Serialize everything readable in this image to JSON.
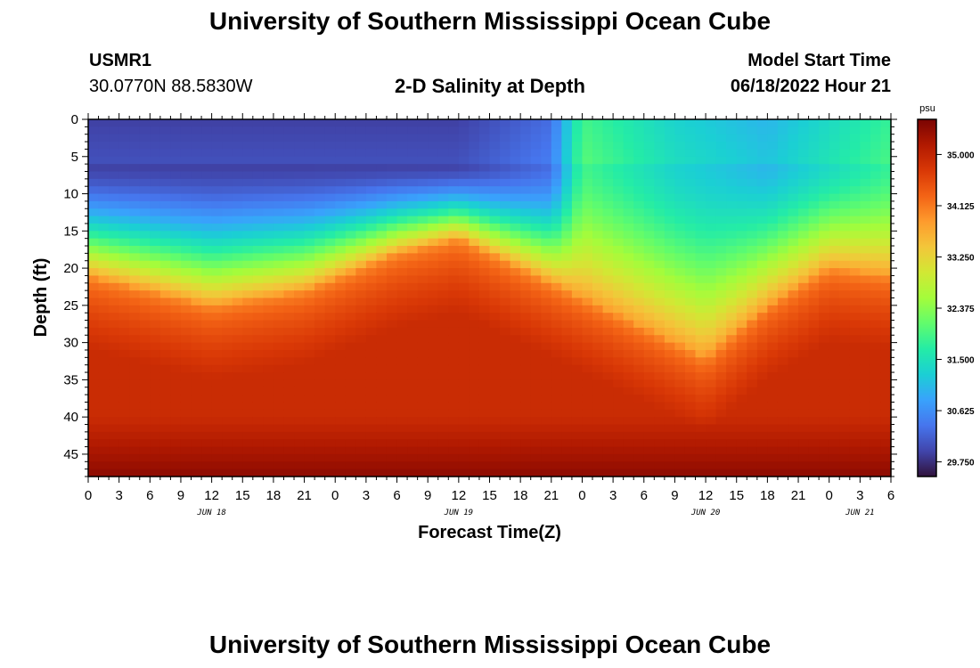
{
  "page": {
    "title_top": "University of Southern Mississippi Ocean Cube",
    "title_bottom": "University of Southern Mississippi Ocean Cube",
    "station_id": "USMR1",
    "station_coords": "30.0770N  88.5830W",
    "plot_title": "2-D Salinity at Depth",
    "model_start_label": "Model Start Time",
    "model_start_value": "06/18/2022 Hour 21"
  },
  "chart_data": {
    "type": "heatmap",
    "title": "2-D Salinity at Depth",
    "xlabel": "Forecast Time(Z)",
    "ylabel": "Depth (ft)",
    "x_tick_labels": [
      "0",
      "3",
      "6",
      "9",
      "12",
      "15",
      "18",
      "21",
      "0",
      "3",
      "6",
      "9",
      "12",
      "15",
      "18",
      "21",
      "0",
      "3",
      "6",
      "9",
      "12",
      "15",
      "18",
      "21",
      "0",
      "3",
      "6"
    ],
    "x_range_hours": [
      0,
      78
    ],
    "date_labels": [
      {
        "text": "JUN 18",
        "hour": 12
      },
      {
        "text": "JUN 19",
        "hour": 36
      },
      {
        "text": "JUN 20",
        "hour": 60
      },
      {
        "text": "JUN 21",
        "hour": 75
      }
    ],
    "y_tick_labels": [
      "0",
      "5",
      "10",
      "15",
      "20",
      "25",
      "30",
      "35",
      "40",
      "45"
    ],
    "y_range_ft": [
      0,
      48
    ],
    "colorbar": {
      "unit": "psu",
      "min": 29.5,
      "max": 35.6,
      "tick_labels": [
        "35.000",
        "34.125",
        "33.250",
        "32.375",
        "31.500",
        "30.625",
        "29.750"
      ],
      "colors": [
        "#30123b",
        "#4145ab",
        "#4675ed",
        "#39a2fc",
        "#1bcfd4",
        "#24eca6",
        "#61fc6c",
        "#a4fc3b",
        "#d1e834",
        "#f3c63a",
        "#fe9b2d",
        "#f36315",
        "#d93806",
        "#b11901",
        "#7a0402"
      ]
    },
    "fields": {
      "surface_psu": 29.9,
      "bottom_psu": 35.45,
      "halocline_depth_ft": [
        {
          "hour": 0,
          "depth": 21
        },
        {
          "hour": 12,
          "depth": 25
        },
        {
          "hour": 21,
          "depth": 23
        },
        {
          "hour": 30,
          "depth": 18
        },
        {
          "hour": 36,
          "depth": 16
        },
        {
          "hour": 45,
          "depth": 22
        },
        {
          "hour": 54,
          "depth": 28
        },
        {
          "hour": 60,
          "depth": 32
        },
        {
          "hour": 66,
          "depth": 25
        },
        {
          "hour": 72,
          "depth": 20
        },
        {
          "hour": 78,
          "depth": 21
        }
      ],
      "fresh_top_psu": [
        {
          "hour": 0,
          "psu": 29.9
        },
        {
          "hour": 36,
          "psu": 29.9
        },
        {
          "hour": 45,
          "psu": 30.3
        },
        {
          "hour": 48,
          "psu": 31.9
        },
        {
          "hour": 57,
          "psu": 31.3
        },
        {
          "hour": 66,
          "psu": 31.0
        },
        {
          "hour": 78,
          "psu": 31.8
        }
      ]
    }
  }
}
